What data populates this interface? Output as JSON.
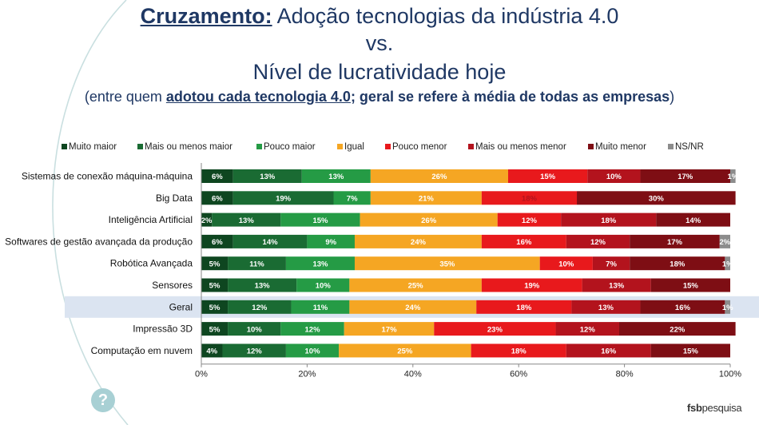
{
  "title": {
    "keyword": "Cruzamento:",
    "rest": " Adoção tecnologias da indústria 4.0",
    "line2": "vs.",
    "line3": "Nível de lucratividade hoje",
    "sub_pre": "(entre quem ",
    "sub_underlined": "adotou cada tecnologia 4.0",
    "sub_bold": "; geral se refere à média de todas as empresas",
    "sub_post": ")"
  },
  "brand": {
    "part1": "fsb",
    "part2": "pesquisa"
  },
  "help_glyph": "?",
  "chart_data": {
    "type": "bar",
    "orientation": "horizontal",
    "stacked": true,
    "percent": true,
    "categories": [
      "Sistemas de conexão máquina-máquina",
      "Big Data",
      "Inteligência Artificial",
      "Softwares de gestão avançada da produção",
      "Robótica Avançada",
      "Sensores",
      "Geral",
      "Impressão 3D",
      "Computação em nuvem"
    ],
    "highlight_category": "Geral",
    "series": [
      {
        "name": "Muito maior",
        "color": "#0e4620",
        "values": [
          6,
          6,
          2,
          6,
          5,
          5,
          5,
          5,
          4
        ]
      },
      {
        "name": "Mais ou menos maior",
        "color": "#1a6b33",
        "values": [
          13,
          19,
          13,
          14,
          11,
          13,
          12,
          10,
          12
        ]
      },
      {
        "name": "Pouco maior",
        "color": "#259b45",
        "values": [
          13,
          7,
          15,
          9,
          13,
          10,
          11,
          12,
          10
        ]
      },
      {
        "name": "Igual",
        "color": "#f5a623",
        "values": [
          26,
          21,
          26,
          24,
          35,
          25,
          24,
          17,
          25
        ]
      },
      {
        "name": "Pouco menor",
        "color": "#e8191c",
        "values": [
          15,
          18,
          12,
          16,
          10,
          19,
          18,
          23,
          18
        ]
      },
      {
        "name": "Mais ou menos menor",
        "color": "#b3131d",
        "values": [
          10,
          0,
          18,
          12,
          7,
          13,
          13,
          12,
          16
        ]
      },
      {
        "name": "Muito menor",
        "color": "#7e0e14",
        "values": [
          17,
          30,
          14,
          17,
          18,
          15,
          16,
          22,
          15
        ]
      },
      {
        "name": "NS/NR",
        "color": "#8c8c8c",
        "values": [
          1,
          0,
          0,
          2,
          1,
          0,
          1,
          0,
          0
        ]
      }
    ],
    "label_overrides": [
      {
        "category": 1,
        "series": 4,
        "color": "#b3131d"
      }
    ],
    "xlim": [
      0,
      100
    ],
    "xticks": [
      "0%",
      "20%",
      "40%",
      "60%",
      "80%",
      "100%"
    ],
    "legend_position": "top",
    "grid": false
  }
}
